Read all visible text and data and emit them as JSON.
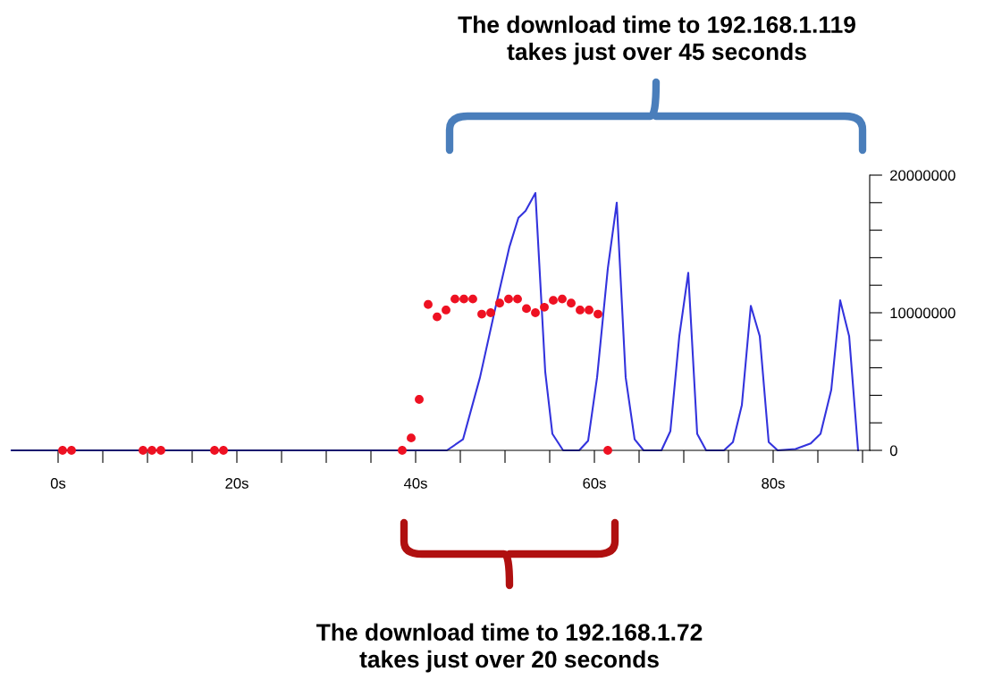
{
  "chart_data": {
    "type": "line",
    "annotations": [
      "The download time to 192.168.1.119\ntakes just over 45 seconds",
      "The download time to 192.168.1.72\ntakes just over 20 seconds"
    ],
    "series": [
      {
        "color": "#3333dd",
        "x": [
          -5.2,
          43.5,
          45.3,
          47.2,
          48.8,
          50.5,
          51.5,
          52.3,
          53.4,
          54.5,
          55.3,
          56.5,
          58.3,
          59.3,
          60.3,
          61.5,
          62.5,
          63.5,
          64.5,
          65.5,
          67.5,
          68.5,
          69.5,
          70.5,
          71.5,
          72.5,
          74.5,
          75.5,
          76.5,
          77.5,
          78.5,
          79.5,
          80.5,
          82.5,
          84.2,
          85.3,
          86.5,
          87.5,
          88.5,
          89.5
        ],
        "values": [
          0,
          0,
          800000,
          5300000,
          10000000,
          14800000,
          16900000,
          17400000,
          18700000,
          5700000,
          1200000,
          0,
          0,
          700000,
          5300000,
          13200000,
          18000000,
          5300000,
          800000,
          0,
          0,
          1400000,
          8300000,
          12900000,
          1200000,
          0,
          0,
          600000,
          3300000,
          10500000,
          8300000,
          600000,
          0,
          100000,
          500000,
          1200000,
          4400000,
          10900000,
          8300000,
          0
        ]
      },
      {
        "type": "scatter",
        "marker": "circle",
        "color": "#ee1122",
        "x": [
          0.5,
          1.5,
          9.5,
          10.5,
          11.5,
          17.5,
          18.5,
          38.5,
          39.5,
          40.4,
          41.4,
          42.4,
          43.4,
          44.4,
          45.4,
          46.4,
          47.4,
          48.4,
          49.4,
          50.4,
          51.4,
          52.4,
          53.4,
          54.4,
          55.4,
          56.4,
          57.4,
          58.4,
          59.4,
          60.4,
          61.5
        ],
        "values": [
          0,
          0,
          0,
          0,
          0,
          0,
          0,
          0,
          900000,
          3700000,
          10600000,
          9700000,
          10200000,
          11000000,
          11000000,
          11000000,
          9900000,
          10000000,
          10700000,
          11000000,
          11000000,
          10300000,
          10000000,
          10400000,
          10900000,
          11000000,
          10700000,
          10200000,
          10200000,
          9900000,
          0
        ]
      }
    ],
    "xlim": [
      -5.2,
      90.8
    ],
    "xticks": [
      {
        "value": 0,
        "label": "0s"
      },
      {
        "value": 5,
        "label": null
      },
      {
        "value": 10,
        "label": null
      },
      {
        "value": 15,
        "label": null
      },
      {
        "value": 20,
        "label": "20s"
      },
      {
        "value": 25,
        "label": null
      },
      {
        "value": 30,
        "label": null
      },
      {
        "value": 35,
        "label": null
      },
      {
        "value": 40,
        "label": "40s"
      },
      {
        "value": 45,
        "label": null
      },
      {
        "value": 50,
        "label": null
      },
      {
        "value": 55,
        "label": null
      },
      {
        "value": 60,
        "label": "60s"
      },
      {
        "value": 65,
        "label": null
      },
      {
        "value": 70,
        "label": null
      },
      {
        "value": 75,
        "label": null
      },
      {
        "value": 80,
        "label": "80s"
      },
      {
        "value": 85,
        "label": null
      },
      {
        "value": 90,
        "label": null
      }
    ],
    "ylim": [
      0,
      20000000
    ],
    "yticks": [
      0,
      {
        "value": 2000000,
        "label": null
      },
      {
        "value": 4000000,
        "label": null
      },
      {
        "value": 6000000,
        "label": null
      },
      {
        "value": 8000000,
        "label": null
      },
      10000000,
      {
        "value": 12000000,
        "label": null
      },
      {
        "value": 14000000,
        "label": null
      },
      {
        "value": 16000000,
        "label": null
      },
      {
        "value": 18000000,
        "label": null
      },
      20000000
    ],
    "grid": false,
    "legend": false
  }
}
